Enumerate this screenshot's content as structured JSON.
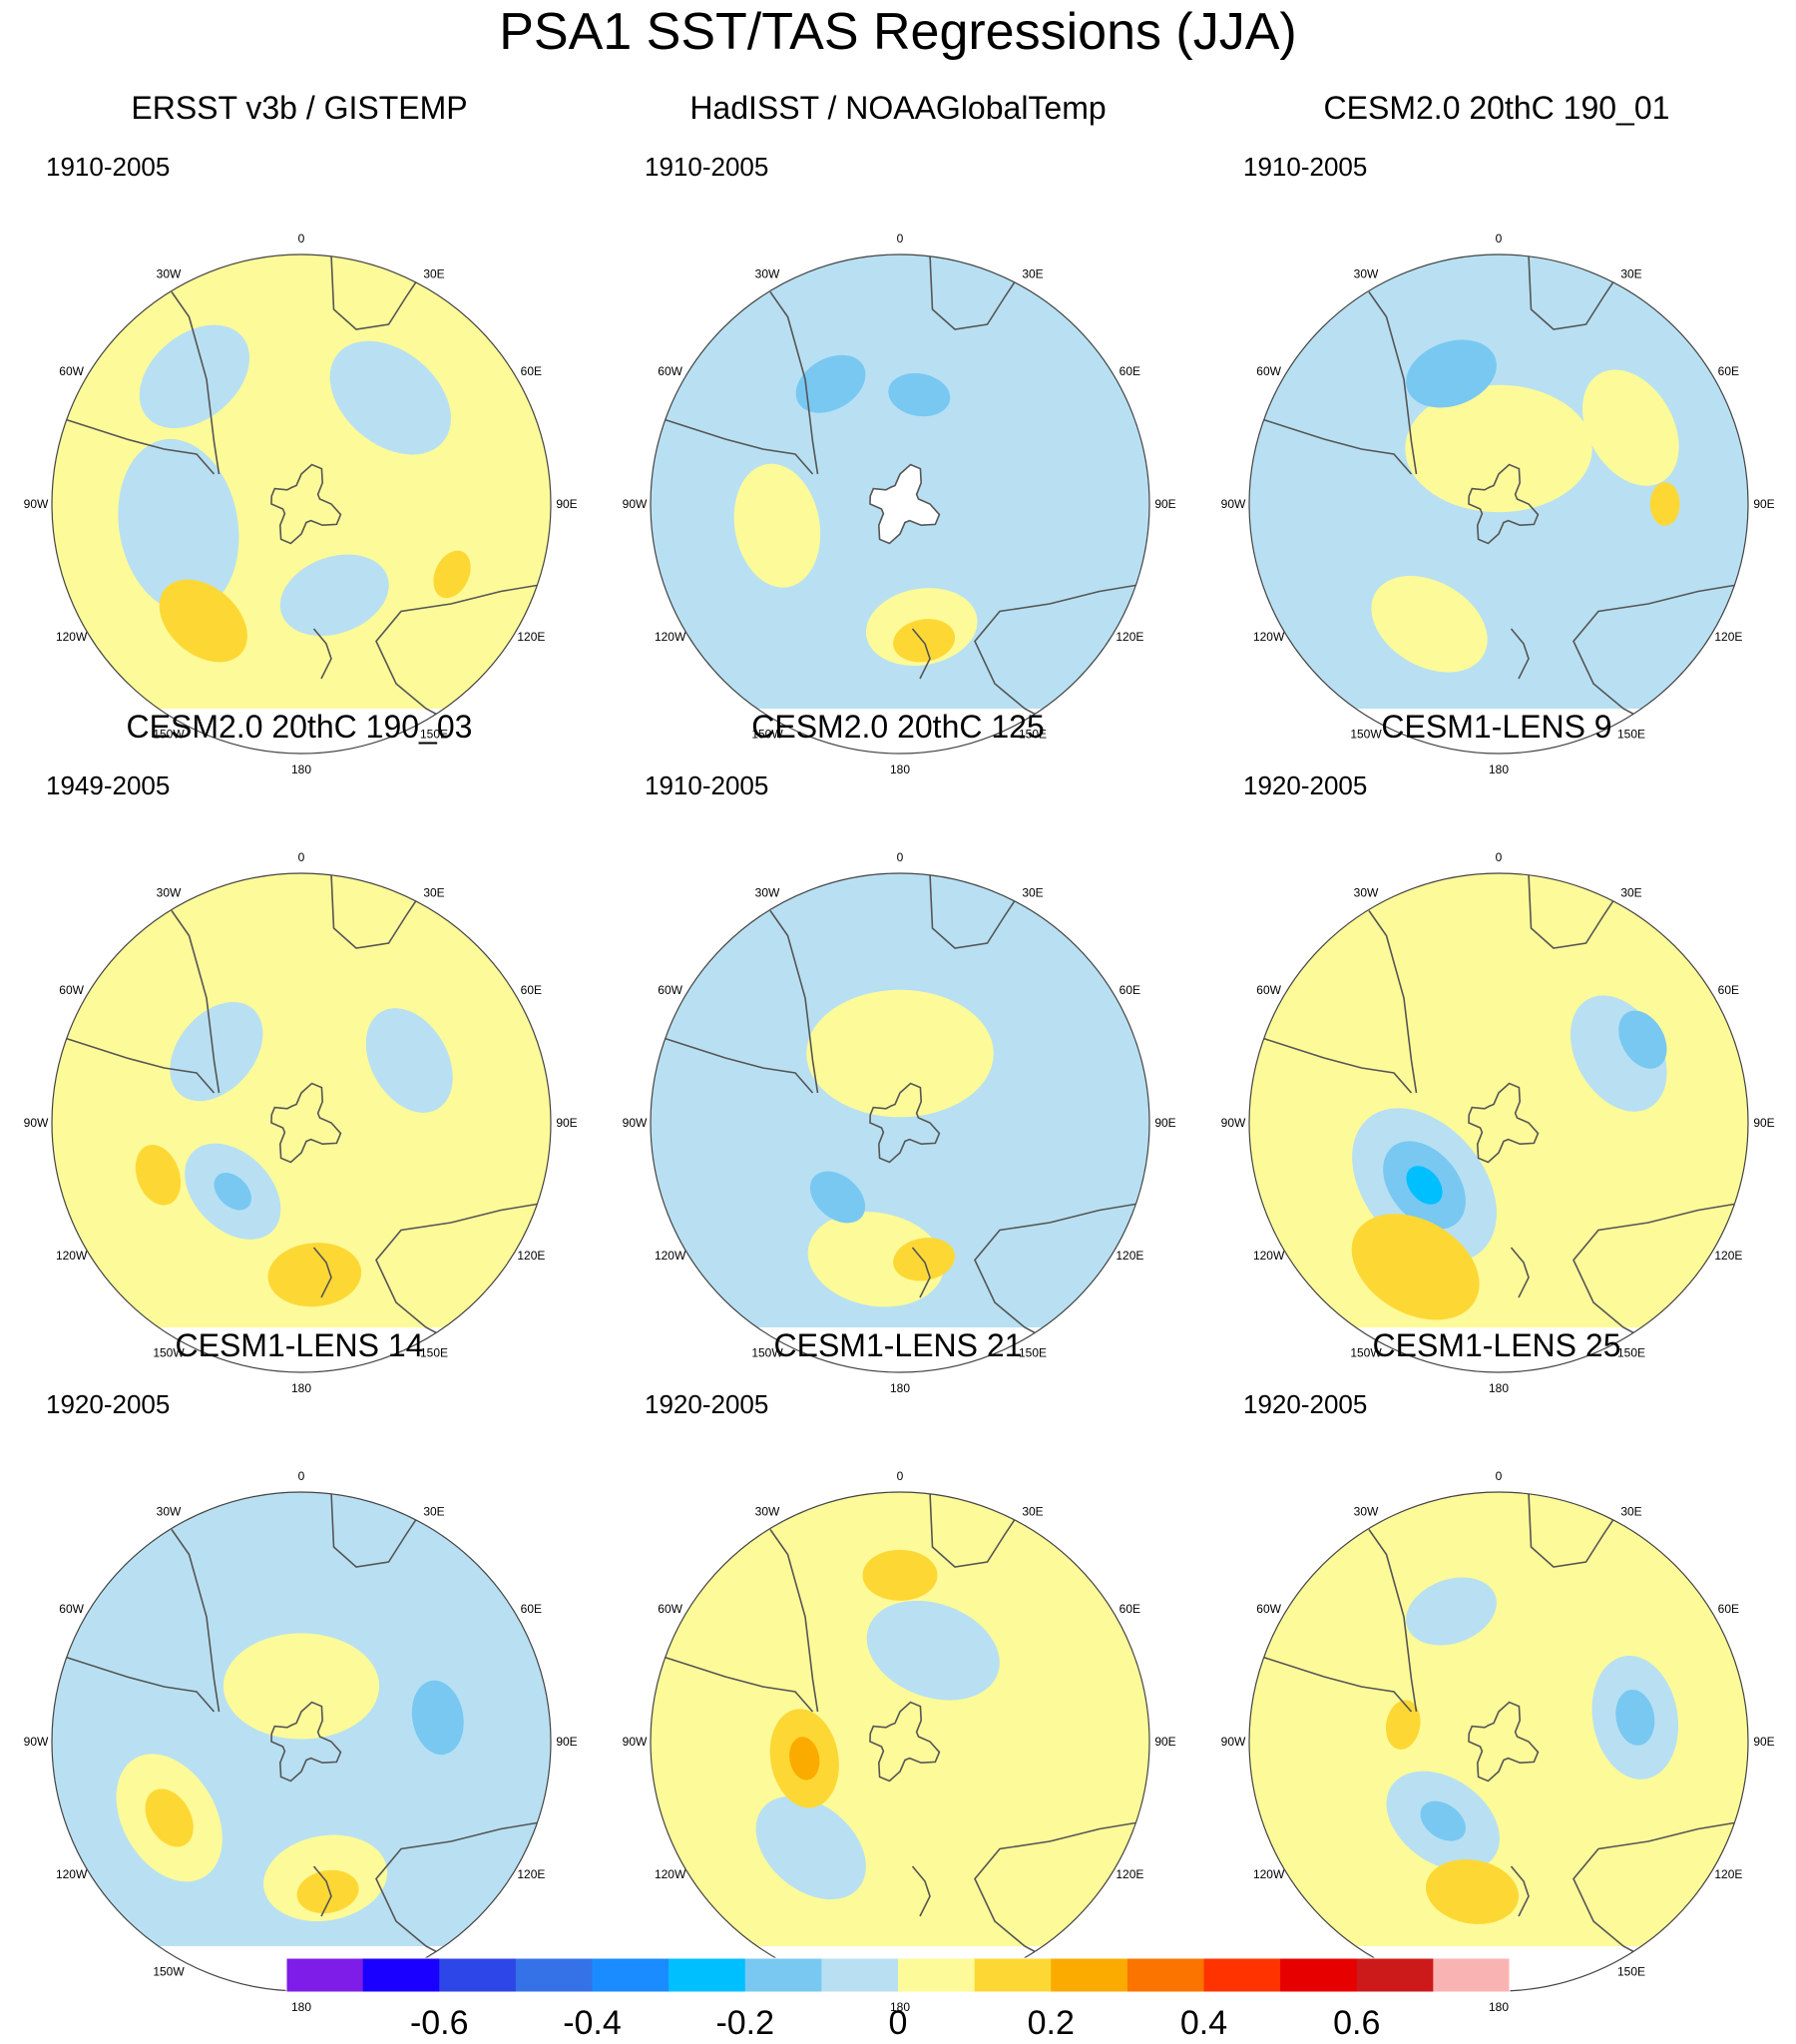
{
  "title": "PSA1 SST/TAS Regressions (JJA)",
  "longitude_labels": [
    "0",
    "30E",
    "60E",
    "90E",
    "120E",
    "150E",
    "180",
    "150W",
    "120W",
    "90W",
    "60W",
    "30W"
  ],
  "palette": [
    "#7f1de8",
    "#1a00ff",
    "#2d46e8",
    "#3572e8",
    "#1a8cff",
    "#00bfff",
    "#78c8f2",
    "#b8e0f2",
    "#fdfa99",
    "#fdd835",
    "#fbab00",
    "#fb7400",
    "#ff3300",
    "#e60000",
    "#cc1a1a",
    "#fab3b3"
  ],
  "land_color": "#ffffff",
  "colorbar": {
    "labels": [
      "-0.6",
      "-0.4",
      "-0.2",
      "0",
      "0.2",
      "0.4",
      "0.6"
    ],
    "levels": [
      -0.7,
      -0.6,
      -0.5,
      -0.4,
      -0.3,
      -0.2,
      -0.1,
      0,
      0.1,
      0.2,
      0.3,
      0.4,
      0.5,
      0.6,
      0.7
    ]
  },
  "panels": [
    {
      "title": "ERSST v3b / GISTEMP",
      "period": "1910-2005",
      "base": 8,
      "blobs": [
        {
          "bin": 7,
          "lon": -100,
          "lat": -45,
          "r": 0.28
        },
        {
          "bin": 7,
          "lon": -40,
          "lat": -30,
          "r": 0.2
        },
        {
          "bin": 7,
          "lon": 40,
          "lat": -40,
          "r": 0.22
        },
        {
          "bin": 7,
          "lon": 160,
          "lat": -55,
          "r": 0.18
        },
        {
          "bin": 9,
          "lon": -140,
          "lat": -35,
          "r": 0.16
        },
        {
          "bin": 9,
          "lon": 115,
          "lat": -30,
          "r": 0.08
        }
      ],
      "hole": false
    },
    {
      "title": "HadISST / NOAAGlobalTemp",
      "period": "1910-2005",
      "base": 7,
      "blobs": [
        {
          "bin": 8,
          "lon": -100,
          "lat": -45,
          "r": 0.2
        },
        {
          "bin": 8,
          "lon": 170,
          "lat": -45,
          "r": 0.18
        },
        {
          "bin": 9,
          "lon": 170,
          "lat": -40,
          "r": 0.1
        },
        {
          "bin": 6,
          "lon": -30,
          "lat": -40,
          "r": 0.12
        },
        {
          "bin": 6,
          "lon": 10,
          "lat": -50,
          "r": 0.1
        }
      ],
      "hole": true
    },
    {
      "title": "CESM2.0 20thC 190_01",
      "period": "1910-2005",
      "base": 7,
      "blobs": [
        {
          "bin": 8,
          "lon": 0,
          "lat": -70,
          "r": 0.3
        },
        {
          "bin": 8,
          "lon": -150,
          "lat": -40,
          "r": 0.2
        },
        {
          "bin": 8,
          "lon": 60,
          "lat": -35,
          "r": 0.2
        },
        {
          "bin": 6,
          "lon": -20,
          "lat": -40,
          "r": 0.15
        },
        {
          "bin": 9,
          "lon": 90,
          "lat": -30,
          "r": 0.07
        }
      ],
      "hole": false
    },
    {
      "title": "CESM2.0 20thC 190_03",
      "period": "1949-2005",
      "base": 8,
      "blobs": [
        {
          "bin": 7,
          "lon": -135,
          "lat": -55,
          "r": 0.18
        },
        {
          "bin": 7,
          "lon": -50,
          "lat": -50,
          "r": 0.18
        },
        {
          "bin": 7,
          "lon": 60,
          "lat": -45,
          "r": 0.18
        },
        {
          "bin": 9,
          "lon": 175,
          "lat": -35,
          "r": 0.15
        },
        {
          "bin": 9,
          "lon": -110,
          "lat": -35,
          "r": 0.1
        },
        {
          "bin": 6,
          "lon": -135,
          "lat": -55,
          "r": 0.07
        }
      ],
      "hole": false
    },
    {
      "title": "CESM2.0 20thC 125",
      "period": "1910-2005",
      "base": 7,
      "blobs": [
        {
          "bin": 8,
          "lon": 0,
          "lat": -65,
          "r": 0.3
        },
        {
          "bin": 8,
          "lon": -170,
          "lat": -40,
          "r": 0.22
        },
        {
          "bin": 9,
          "lon": 170,
          "lat": -40,
          "r": 0.1
        },
        {
          "bin": 6,
          "lon": -140,
          "lat": -55,
          "r": 0.1
        }
      ],
      "hole": false
    },
    {
      "title": "CESM1-LENS 9",
      "period": "1920-2005",
      "base": 8,
      "blobs": [
        {
          "bin": 7,
          "lon": -130,
          "lat": -55,
          "r": 0.28
        },
        {
          "bin": 6,
          "lon": -130,
          "lat": -55,
          "r": 0.16
        },
        {
          "bin": 5,
          "lon": -130,
          "lat": -55,
          "r": 0.07
        },
        {
          "bin": 9,
          "lon": -150,
          "lat": -30,
          "r": 0.22
        },
        {
          "bin": 7,
          "lon": 60,
          "lat": -40,
          "r": 0.2
        },
        {
          "bin": 6,
          "lon": 60,
          "lat": -30,
          "r": 0.1
        }
      ],
      "hole": false
    },
    {
      "title": "CESM1-LENS 14",
      "period": "1920-2005",
      "base": 7,
      "blobs": [
        {
          "bin": 8,
          "lon": -120,
          "lat": -35,
          "r": 0.22
        },
        {
          "bin": 9,
          "lon": -120,
          "lat": -35,
          "r": 0.1
        },
        {
          "bin": 8,
          "lon": 170,
          "lat": -40,
          "r": 0.2
        },
        {
          "bin": 9,
          "lon": 170,
          "lat": -35,
          "r": 0.1
        },
        {
          "bin": 8,
          "lon": 0,
          "lat": -70,
          "r": 0.25
        },
        {
          "bin": 6,
          "lon": 80,
          "lat": -40,
          "r": 0.12
        }
      ],
      "hole": false
    },
    {
      "title": "CESM1-LENS 21",
      "period": "1920-2005",
      "base": 8,
      "blobs": [
        {
          "bin": 7,
          "lon": -140,
          "lat": -40,
          "r": 0.2
        },
        {
          "bin": 7,
          "lon": 20,
          "lat": -55,
          "r": 0.22
        },
        {
          "bin": 9,
          "lon": -100,
          "lat": -55,
          "r": 0.16
        },
        {
          "bin": 10,
          "lon": -100,
          "lat": -55,
          "r": 0.07
        },
        {
          "bin": 9,
          "lon": 0,
          "lat": -30,
          "r": 0.12
        }
      ],
      "hole": false
    },
    {
      "title": "CESM1-LENS 25",
      "period": "1920-2005",
      "base": 8,
      "blobs": [
        {
          "bin": 7,
          "lon": -145,
          "lat": -55,
          "r": 0.2
        },
        {
          "bin": 6,
          "lon": -145,
          "lat": -55,
          "r": 0.08
        },
        {
          "bin": 7,
          "lon": 80,
          "lat": -40,
          "r": 0.2
        },
        {
          "bin": 6,
          "lon": 80,
          "lat": -40,
          "r": 0.09
        },
        {
          "bin": 7,
          "lon": -20,
          "lat": -40,
          "r": 0.15
        },
        {
          "bin": 9,
          "lon": -170,
          "lat": -35,
          "r": 0.15
        },
        {
          "bin": 9,
          "lon": -80,
          "lat": -55,
          "r": 0.08
        }
      ],
      "hole": false
    }
  ]
}
